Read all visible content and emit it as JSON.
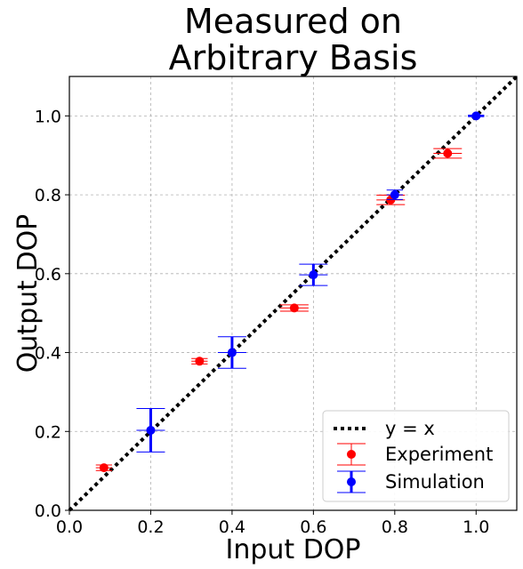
{
  "chart_data": {
    "type": "scatter",
    "title": [
      "Measured on",
      "Arbitrary Basis"
    ],
    "xlabel": "Input DOP",
    "ylabel": "Output DOP",
    "xlim": [
      0.0,
      1.1
    ],
    "ylim": [
      0.0,
      1.1
    ],
    "xticks": [
      "0.0",
      "0.2",
      "0.4",
      "0.6",
      "0.8",
      "1.0"
    ],
    "yticks": [
      "0.0",
      "0.2",
      "0.4",
      "0.6",
      "0.8",
      "1.0"
    ],
    "grid": true,
    "legend_position": "lower-right",
    "reference_line": {
      "label": "y = x",
      "style": "dotted",
      "color": "#000000"
    },
    "series": [
      {
        "name": "Experiment",
        "color": "#ff0000",
        "points": [
          {
            "x": 0.085,
            "y": 0.108,
            "xerr": 0.02,
            "yerr": 0.007
          },
          {
            "x": 0.32,
            "y": 0.378,
            "xerr": 0.02,
            "yerr": 0.007
          },
          {
            "x": 0.553,
            "y": 0.513,
            "xerr": 0.035,
            "yerr": 0.008
          },
          {
            "x": 0.79,
            "y": 0.787,
            "xerr": 0.035,
            "yerr": 0.012
          },
          {
            "x": 0.93,
            "y": 0.905,
            "xerr": 0.035,
            "yerr": 0.012
          }
        ]
      },
      {
        "name": "Simulation",
        "color": "#0000ff",
        "points": [
          {
            "x": 0.2,
            "y": 0.203,
            "xerr": 0.035,
            "yerr": 0.055
          },
          {
            "x": 0.4,
            "y": 0.4,
            "xerr": 0.035,
            "yerr": 0.04
          },
          {
            "x": 0.6,
            "y": 0.597,
            "xerr": 0.035,
            "yerr": 0.027
          },
          {
            "x": 0.8,
            "y": 0.8,
            "xerr": 0.02,
            "yerr": 0.012
          },
          {
            "x": 1.0,
            "y": 1.0,
            "xerr": 0.02,
            "yerr": 0.002
          }
        ]
      }
    ]
  }
}
